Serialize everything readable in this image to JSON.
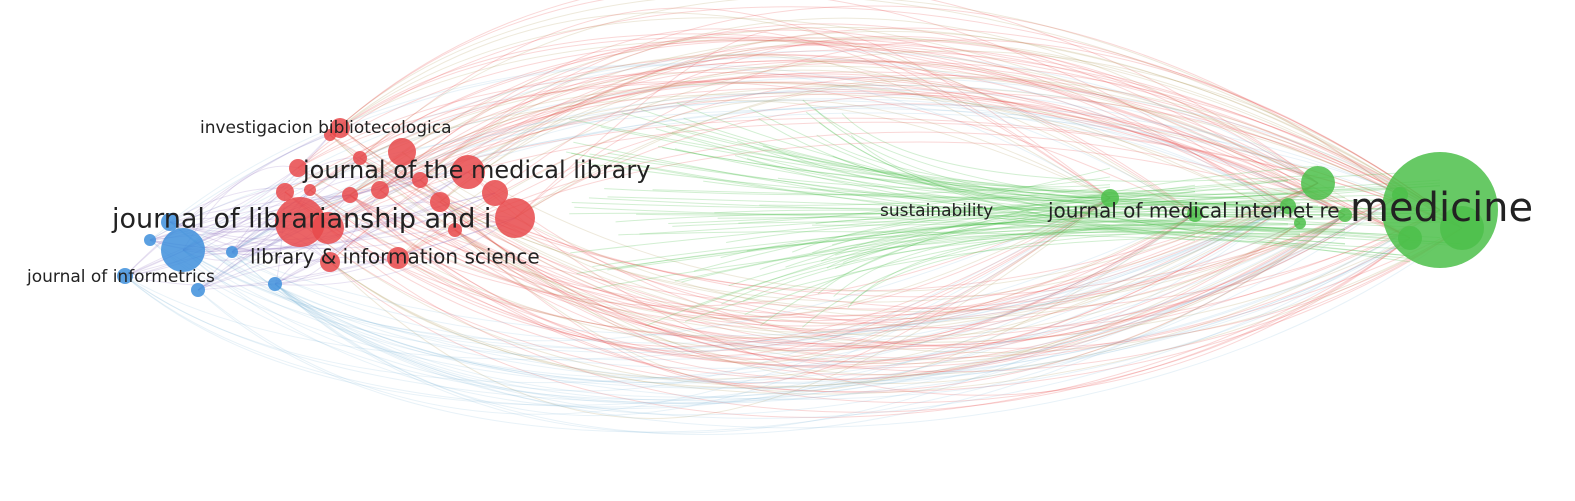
{
  "nodes": [
    {
      "label": "investigacion bibliotecologica"
    },
    {
      "label": "journal of the medical library"
    },
    {
      "label": "journal of librarianship and i"
    },
    {
      "label": "library & information science"
    },
    {
      "label": "journal of informetrics"
    },
    {
      "label": "sustainability"
    },
    {
      "label": "journal of medical internet re"
    },
    {
      "label": "medicine"
    }
  ]
}
